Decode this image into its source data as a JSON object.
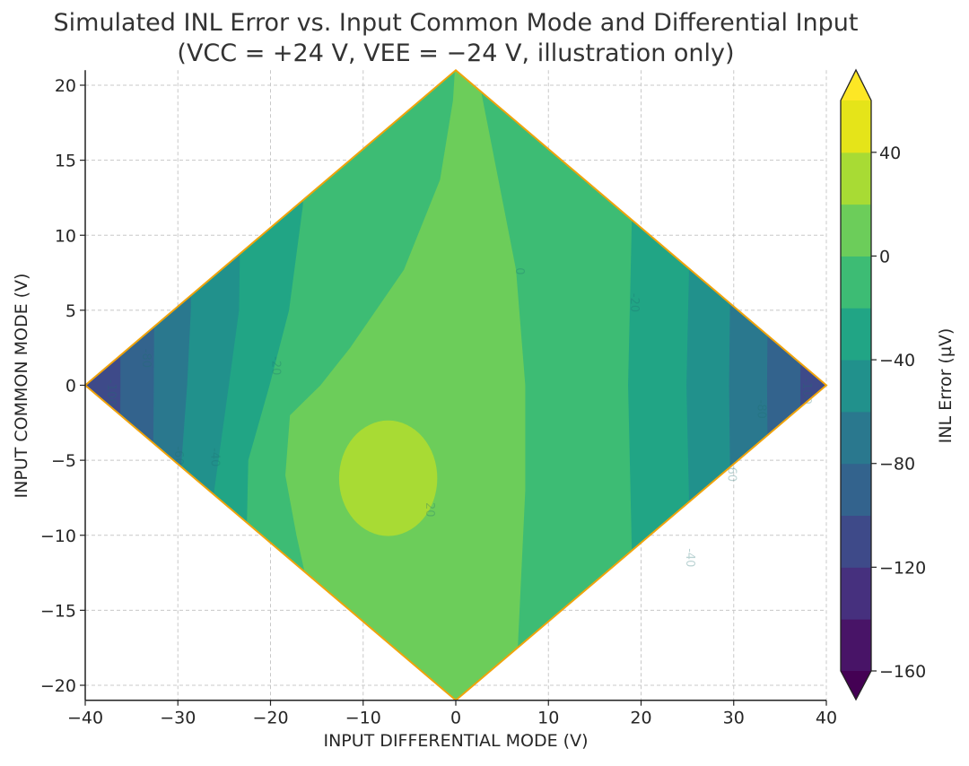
{
  "chart_data": {
    "type": "contourf",
    "title": "Simulated INL Error vs. Input Common Mode and Differential Input",
    "subtitle": "(VCC = +24 V, VEE = −24 V, illustration only)",
    "xlabel": "INPUT DIFFERENTIAL MODE (V)",
    "ylabel": "INPUT COMMON MODE (V)",
    "xlim": [
      -40,
      40
    ],
    "ylim": [
      -21,
      21
    ],
    "xticks": [
      "−40",
      "−30",
      "−20",
      "−10",
      "0",
      "10",
      "20",
      "30",
      "40"
    ],
    "xtick_values": [
      -40,
      -30,
      -20,
      -10,
      0,
      10,
      20,
      30,
      40
    ],
    "yticks": [
      "−20",
      "−15",
      "−10",
      "−5",
      "0",
      "5",
      "10",
      "15",
      "20"
    ],
    "ytick_values": [
      -20,
      -15,
      -10,
      -5,
      0,
      5,
      10,
      15,
      20
    ],
    "grid": true,
    "domain_outline": {
      "vertices": [
        [
          -40,
          0
        ],
        [
          0,
          21
        ],
        [
          40,
          0
        ],
        [
          0,
          -21
        ]
      ],
      "color": "#f0a30a"
    },
    "colormap": "viridis",
    "levels": [
      -160,
      -140,
      -120,
      -100,
      -80,
      -60,
      -40,
      -20,
      0,
      20,
      40,
      60
    ],
    "level_colors": [
      "#481467",
      "#46307e",
      "#3e4a89",
      "#33638d",
      "#2a788e",
      "#21918c",
      "#21a585",
      "#3dbc74",
      "#6ccd5a",
      "#a8db34",
      "#e5e419"
    ],
    "extend_colors": {
      "below": "#440154",
      "above": "#fde725"
    },
    "base_level_band": [
      -120,
      -100
    ],
    "regions": [
      {
        "min_level": -100,
        "left": [
          [
            -36.3,
            22
          ],
          [
            -36.2,
            0
          ],
          [
            -36.4,
            -22
          ]
        ],
        "right": [
          [
            37.3,
            22
          ],
          [
            37.2,
            0
          ],
          [
            37.3,
            -22
          ]
        ]
      },
      {
        "min_level": -80,
        "left": [
          [
            -32.4,
            22
          ],
          [
            -32.6,
            0
          ],
          [
            -32.9,
            -22
          ]
        ],
        "right": [
          [
            33.9,
            22
          ],
          [
            33.6,
            0
          ],
          [
            33.9,
            -22
          ]
        ]
      },
      {
        "min_level": -60,
        "left": [
          [
            -28.4,
            22
          ],
          [
            -28.6,
            5
          ],
          [
            -29.0,
            0
          ],
          [
            -29.6,
            -5
          ],
          [
            -30,
            -22
          ]
        ],
        "right": [
          [
            29.9,
            22
          ],
          [
            29.5,
            0
          ],
          [
            29.9,
            -22
          ]
        ]
      },
      {
        "min_level": -40,
        "left": [
          [
            -23,
            22
          ],
          [
            -23.4,
            5
          ],
          [
            -24.5,
            0
          ],
          [
            -26.3,
            -8
          ],
          [
            -27,
            -22
          ]
        ],
        "right": [
          [
            25.7,
            22
          ],
          [
            24.9,
            0
          ],
          [
            25.7,
            -22
          ]
        ]
      },
      {
        "min_level": -20,
        "left": [
          [
            -16.5,
            22
          ],
          [
            -16.5,
            12
          ],
          [
            -18,
            5
          ],
          [
            -20.1,
            0
          ],
          [
            -22.4,
            -5
          ],
          [
            -23,
            -22
          ]
        ],
        "right": [
          [
            19.4,
            22
          ],
          [
            18.6,
            0
          ],
          [
            19.4,
            -22
          ]
        ]
      },
      {
        "min_level": 0,
        "left": [
          [
            0,
            22
          ],
          [
            -0.3,
            19
          ],
          [
            -1.7,
            13.7
          ],
          [
            -5.6,
            7.7
          ],
          [
            -11.4,
            2.5
          ],
          [
            -14.6,
            0
          ],
          [
            -17.9,
            -2
          ],
          [
            -18.4,
            -6
          ],
          [
            -17.2,
            -10
          ],
          [
            -16.3,
            -12.5
          ],
          [
            -14,
            -22
          ]
        ],
        "right": [
          [
            3,
            22
          ],
          [
            2.6,
            20
          ],
          [
            4.6,
            13.7
          ],
          [
            6.5,
            7.7
          ],
          [
            7.5,
            0
          ],
          [
            7.5,
            -7
          ],
          [
            6.7,
            -17.4
          ],
          [
            6,
            -22
          ]
        ]
      }
    ],
    "ellipse_region": {
      "min_level": 20,
      "center": [
        -7.3,
        -6.2
      ],
      "rx": 5.3,
      "ry": 3.85
    },
    "contour_labels": [
      {
        "text": "-100",
        "x": -37.6,
        "y": -0.5
      },
      {
        "text": "-80",
        "x": -33.8,
        "y": 1.8
      },
      {
        "text": "-60",
        "x": -30.3,
        "y": -4.7
      },
      {
        "text": "-40",
        "x": -26.4,
        "y": -4.8
      },
      {
        "text": "-20",
        "x": -19.8,
        "y": 1.3
      },
      {
        "text": "-20",
        "x": 18.9,
        "y": 5.5
      },
      {
        "text": "-40",
        "x": 24.9,
        "y": -11.5
      },
      {
        "text": "-60",
        "x": 29.4,
        "y": -5.8
      },
      {
        "text": "-80",
        "x": 32.6,
        "y": -1.6
      },
      {
        "text": "-100",
        "x": 37.5,
        "y": -0.4
      },
      {
        "text": "0",
        "x": 6.5,
        "y": 7.6
      },
      {
        "text": "20",
        "x": -3.2,
        "y": -8.3
      }
    ],
    "colorbar": {
      "label": "INL Error (µV)",
      "ticks": [
        "40",
        "0",
        "−40",
        "−80",
        "−120",
        "−160"
      ],
      "tick_values": [
        40,
        0,
        -40,
        -80,
        -120,
        -160
      ],
      "range": [
        -160,
        60
      ],
      "extend": "both"
    }
  }
}
